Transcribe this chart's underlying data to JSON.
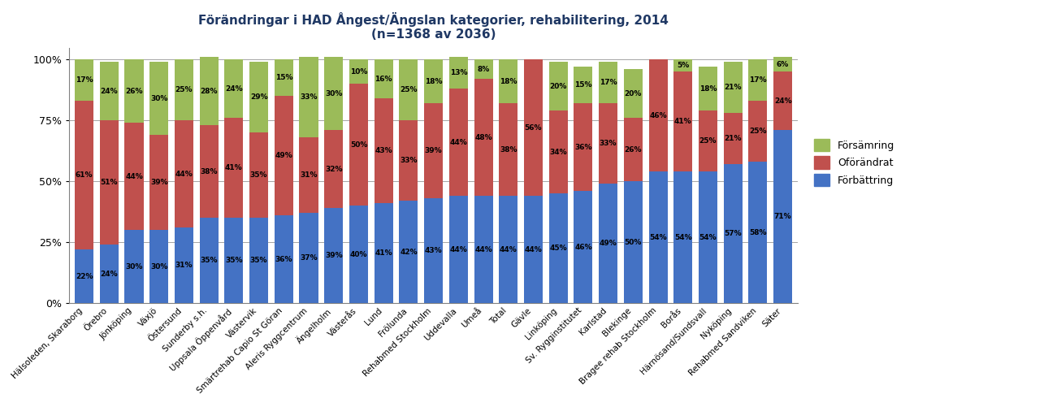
{
  "title": "Förändringar i HAD Ångest/Ängslan kategorier, rehabilitering, 2014\n(n=1368 av 2036)",
  "categories": [
    "Hälsoleden, Skaraborg",
    "Örebro",
    "Jönköping",
    "Växjö",
    "Östersund",
    "Sunderby s.h.",
    "Uppsala Öppenvård",
    "Västervik",
    "Smärtrehab Capio St Göran",
    "Aleris Ryggcentrum",
    "Ängelholm",
    "Västerås",
    "Lund",
    "Frölunda",
    "Rehabmed Stockholm",
    "Uddevalla",
    "Umeå",
    "Total",
    "Gävle",
    "Linköping",
    "Sv. Rygginstitutet",
    "Karlstad",
    "Blekinge",
    "Bragee rehab Stockholm",
    "Borås",
    "Härnösand/Sundsvall",
    "Nyköping",
    "Rehabmed Sandviken",
    "Säter"
  ],
  "forbattring": [
    22,
    24,
    30,
    30,
    31,
    35,
    35,
    35,
    36,
    37,
    39,
    40,
    41,
    42,
    43,
    44,
    44,
    44,
    44,
    45,
    46,
    49,
    50,
    54,
    54,
    54,
    57,
    58,
    71
  ],
  "oforandrat": [
    61,
    51,
    44,
    39,
    44,
    38,
    41,
    35,
    49,
    31,
    32,
    50,
    43,
    33,
    39,
    44,
    48,
    38,
    56,
    34,
    36,
    33,
    26,
    46,
    41,
    25,
    21,
    25,
    24
  ],
  "forsamring": [
    17,
    24,
    26,
    30,
    25,
    28,
    24,
    29,
    15,
    33,
    30,
    10,
    16,
    25,
    18,
    13,
    8,
    18,
    0,
    20,
    15,
    17,
    20,
    0,
    5,
    18,
    21,
    17,
    6
  ],
  "forbattring_color": "#4472C4",
  "oforandrat_color": "#C0504D",
  "forsamring_color": "#9BBB59",
  "bg_color": "#FFFFFF",
  "plot_bg_color": "#FFFFFF",
  "border_color": "#AAAAAA",
  "ylabel_ticks": [
    "0%",
    "25%",
    "50%",
    "75%",
    "100%"
  ],
  "legend_labels": [
    "Försämring",
    "Oförändrat",
    "Förbättring"
  ]
}
